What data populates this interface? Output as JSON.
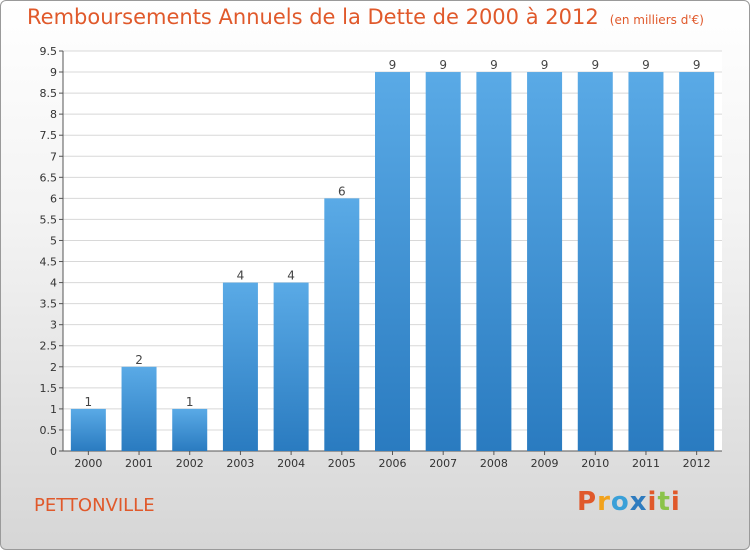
{
  "title": "Remboursements Annuels de la Dette de 2000 à 2012",
  "unit": "(en milliers d'€)",
  "commune": "PETTONVILLE",
  "logo": {
    "letters": [
      "P",
      "r",
      "o",
      "x",
      "i",
      "t",
      "i"
    ],
    "colors": [
      "#e0592b",
      "#f2a21b",
      "#3aa0d8",
      "#2e7bbf",
      "#e0592b",
      "#8bc34a",
      "#e0592b"
    ]
  },
  "colors": {
    "bar_light": "#5aaae6",
    "bar_dark": "#2a7bc0",
    "accent": "#e0592b"
  },
  "chart_data": {
    "type": "bar",
    "categories": [
      "2000",
      "2001",
      "2002",
      "2003",
      "2004",
      "2005",
      "2006",
      "2007",
      "2008",
      "2009",
      "2010",
      "2011",
      "2012"
    ],
    "values": [
      1,
      2,
      1,
      4,
      4,
      6,
      9,
      9,
      9,
      9,
      9,
      9,
      9
    ],
    "value_labels": [
      "1",
      "2",
      "1",
      "4",
      "4",
      "6",
      "9",
      "9",
      "9",
      "9",
      "9",
      "9",
      "9"
    ],
    "ylim": [
      0,
      9.5
    ],
    "yticks": [
      "0",
      "0.5",
      "1",
      "1.5",
      "2",
      "2.5",
      "3",
      "3.5",
      "4",
      "4.5",
      "5",
      "5.5",
      "6",
      "6.5",
      "7",
      "7.5",
      "8",
      "8.5",
      "9",
      "9.5"
    ],
    "grid": true
  }
}
